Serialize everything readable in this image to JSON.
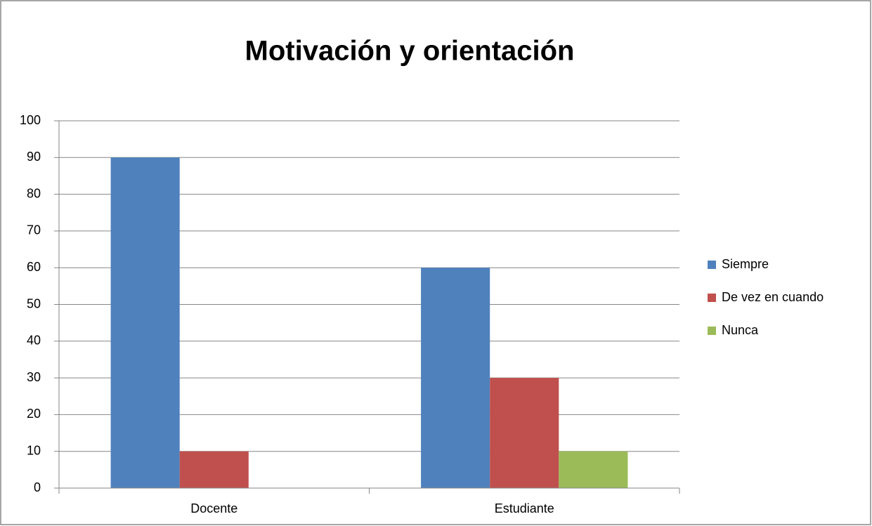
{
  "chart_data": {
    "type": "bar",
    "title": "Motivación y orientación",
    "categories": [
      "Docente",
      "Estudiante"
    ],
    "series": [
      {
        "name": "Siempre",
        "color": "#4f81bd",
        "values": [
          90,
          60
        ]
      },
      {
        "name": "De vez en cuando",
        "color": "#c0504d",
        "values": [
          10,
          30
        ]
      },
      {
        "name": "Nunca",
        "color": "#9bbb59",
        "values": [
          0,
          10
        ]
      }
    ],
    "ylim": [
      0,
      100
    ],
    "yticks": [
      0,
      10,
      20,
      30,
      40,
      50,
      60,
      70,
      80,
      90,
      100
    ],
    "grid": true,
    "legend": "right"
  }
}
